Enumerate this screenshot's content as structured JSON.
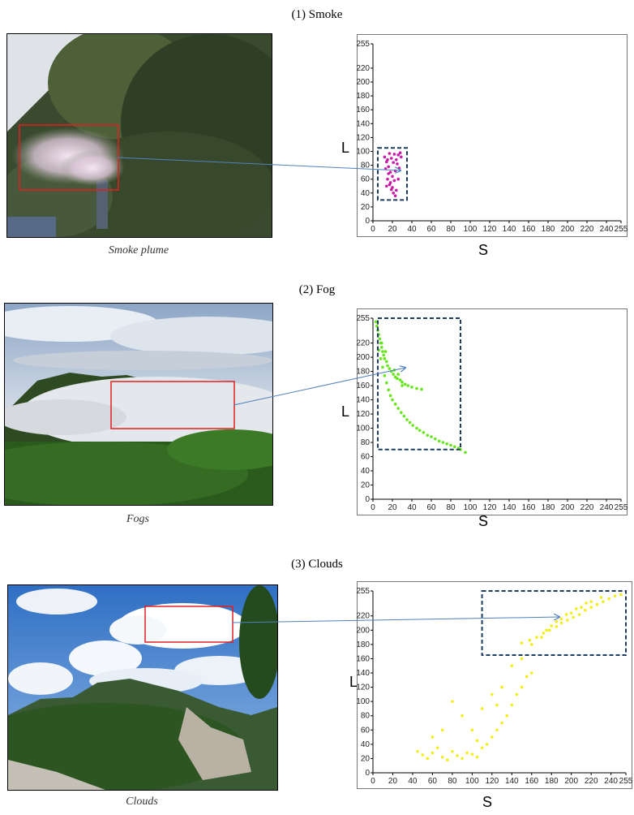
{
  "sections": [
    {
      "title": "(1) Smoke",
      "caption": "Smoke plume"
    },
    {
      "title": "(2) Fog",
      "caption": "Fogs"
    },
    {
      "title": "(3) Clouds",
      "caption": "Clouds"
    }
  ],
  "colors": {
    "smoke_points": "#cc1aa8",
    "fog_points": "#66e619",
    "cloud_points": "#f2ee1a",
    "region_box": "#1f3a60",
    "photo_box": "#e02020",
    "link_arrow": "#4f81bd"
  },
  "chart_data": [
    {
      "type": "scatter",
      "title": "",
      "xlabel": "S",
      "ylabel": "L",
      "xlim": [
        0,
        255
      ],
      "ylim": [
        0,
        255
      ],
      "xticks": [
        "0",
        "20",
        "40",
        "60",
        "80",
        "100",
        "120",
        "140",
        "160",
        "180",
        "200",
        "220",
        "240",
        "255"
      ],
      "yticks": [
        "0",
        "20",
        "40",
        "60",
        "80",
        "100",
        "120",
        "140",
        "160",
        "180",
        "200",
        "220",
        "255"
      ],
      "series": [
        {
          "points": [
            [
              12,
              92
            ],
            [
              14,
              85
            ],
            [
              16,
              78
            ],
            [
              18,
              70
            ],
            [
              20,
              64
            ],
            [
              22,
              58
            ],
            [
              15,
              60
            ],
            [
              17,
              52
            ],
            [
              19,
              45
            ],
            [
              21,
              40
            ],
            [
              23,
              36
            ],
            [
              13,
              75
            ],
            [
              24,
              88
            ],
            [
              26,
              95
            ],
            [
              28,
              98
            ],
            [
              22,
              96
            ],
            [
              19,
              90
            ],
            [
              25,
              82
            ],
            [
              27,
              76
            ],
            [
              16,
              68
            ],
            [
              18,
              55
            ],
            [
              20,
              48
            ],
            [
              14,
              50
            ],
            [
              24,
              44
            ],
            [
              26,
              60
            ],
            [
              29,
              92
            ],
            [
              21,
              84
            ],
            [
              17,
              97
            ],
            [
              15,
              88
            ],
            [
              23,
              72
            ]
          ]
        }
      ],
      "highlight_region": {
        "x": [
          5,
          35
        ],
        "y": [
          30,
          105
        ]
      },
      "grid": false
    },
    {
      "type": "scatter",
      "title": "",
      "xlabel": "S",
      "ylabel": "L",
      "xlim": [
        0,
        255
      ],
      "ylim": [
        0,
        255
      ],
      "xticks": [
        "0",
        "20",
        "40",
        "60",
        "80",
        "100",
        "120",
        "140",
        "160",
        "180",
        "200",
        "220",
        "240",
        "255"
      ],
      "yticks": [
        "0",
        "20",
        "40",
        "60",
        "80",
        "100",
        "120",
        "140",
        "160",
        "180",
        "200",
        "220",
        "255"
      ],
      "series": [
        {
          "points": [
            [
              3,
              250
            ],
            [
              4,
              244
            ],
            [
              5,
              238
            ],
            [
              6,
              232
            ],
            [
              7,
              226
            ],
            [
              8,
              220
            ],
            [
              9,
              214
            ],
            [
              10,
              208
            ],
            [
              11,
              203
            ],
            [
              12,
              198
            ],
            [
              14,
              194
            ],
            [
              15,
              188
            ],
            [
              17,
              184
            ],
            [
              19,
              180
            ],
            [
              21,
              176
            ],
            [
              23,
              172
            ],
            [
              25,
              170
            ],
            [
              28,
              168
            ],
            [
              30,
              165
            ],
            [
              33,
              162
            ],
            [
              36,
              160
            ],
            [
              40,
              158
            ],
            [
              45,
              156
            ],
            [
              50,
              155
            ],
            [
              6,
              210
            ],
            [
              8,
              198
            ],
            [
              10,
              186
            ],
            [
              12,
              174
            ],
            [
              14,
              164
            ],
            [
              16,
              154
            ],
            [
              18,
              146
            ],
            [
              20,
              140
            ],
            [
              23,
              134
            ],
            [
              26,
              128
            ],
            [
              29,
              122
            ],
            [
              32,
              117
            ],
            [
              35,
              112
            ],
            [
              38,
              108
            ],
            [
              41,
              104
            ],
            [
              45,
              100
            ],
            [
              48,
              97
            ],
            [
              52,
              94
            ],
            [
              56,
              90
            ],
            [
              60,
              88
            ],
            [
              64,
              85
            ],
            [
              68,
              82
            ],
            [
              72,
              80
            ],
            [
              76,
              78
            ],
            [
              80,
              76
            ],
            [
              84,
              74
            ],
            [
              88,
              72
            ],
            [
              90,
              70
            ],
            [
              95,
              66
            ],
            [
              22,
              182
            ],
            [
              26,
              176
            ],
            [
              30,
              160
            ],
            [
              9,
              220
            ],
            [
              13,
              208
            ]
          ]
        }
      ],
      "highlight_region": {
        "x": [
          5,
          90
        ],
        "y": [
          70,
          255
        ]
      },
      "grid": false
    },
    {
      "type": "scatter",
      "title": "",
      "xlabel": "S",
      "ylabel": "L",
      "xlim": [
        0,
        255
      ],
      "ylim": [
        0,
        255
      ],
      "xticks": [
        "0",
        "20",
        "40",
        "60",
        "80",
        "100",
        "120",
        "140",
        "160",
        "180",
        "200",
        "220",
        "240",
        "255"
      ],
      "yticks": [
        "0",
        "20",
        "40",
        "60",
        "80",
        "100",
        "120",
        "140",
        "160",
        "180",
        "200",
        "220",
        "255"
      ],
      "series": [
        {
          "points": [
            [
              150,
              182
            ],
            [
              158,
              186
            ],
            [
              165,
              190
            ],
            [
              172,
              196
            ],
            [
              178,
              200
            ],
            [
              185,
              205
            ],
            [
              190,
              210
            ],
            [
              196,
              214
            ],
            [
              202,
              218
            ],
            [
              208,
              222
            ],
            [
              214,
              228
            ],
            [
              220,
              232
            ],
            [
              226,
              236
            ],
            [
              232,
              240
            ],
            [
              238,
              244
            ],
            [
              244,
              248
            ],
            [
              250,
              250
            ],
            [
              160,
              180
            ],
            [
              170,
              190
            ],
            [
              180,
              206
            ],
            [
              190,
              216
            ],
            [
              200,
              224
            ],
            [
              210,
              232
            ],
            [
              220,
              240
            ],
            [
              230,
              246
            ],
            [
              175,
              200
            ],
            [
              185,
              212
            ],
            [
              195,
              222
            ],
            [
              205,
              230
            ],
            [
              215,
              238
            ],
            [
              45,
              30
            ],
            [
              50,
              25
            ],
            [
              55,
              20
            ],
            [
              60,
              28
            ],
            [
              65,
              35
            ],
            [
              70,
              22
            ],
            [
              75,
              18
            ],
            [
              80,
              30
            ],
            [
              85,
              24
            ],
            [
              90,
              20
            ],
            [
              95,
              28
            ],
            [
              100,
              26
            ],
            [
              105,
              22
            ],
            [
              110,
              35
            ],
            [
              115,
              40
            ],
            [
              120,
              50
            ],
            [
              125,
              60
            ],
            [
              130,
              70
            ],
            [
              135,
              80
            ],
            [
              140,
              95
            ],
            [
              145,
              110
            ],
            [
              150,
              120
            ],
            [
              155,
              135
            ],
            [
              160,
              140
            ],
            [
              100,
              60
            ],
            [
              90,
              80
            ],
            [
              110,
              90
            ],
            [
              120,
              110
            ],
            [
              130,
              120
            ],
            [
              80,
              100
            ],
            [
              70,
              60
            ],
            [
              60,
              50
            ],
            [
              140,
              150
            ],
            [
              150,
              160
            ],
            [
              125,
              95
            ],
            [
              105,
              45
            ]
          ]
        }
      ],
      "highlight_region": {
        "x": [
          110,
          255
        ],
        "y": [
          165,
          255
        ]
      },
      "grid": false
    }
  ]
}
